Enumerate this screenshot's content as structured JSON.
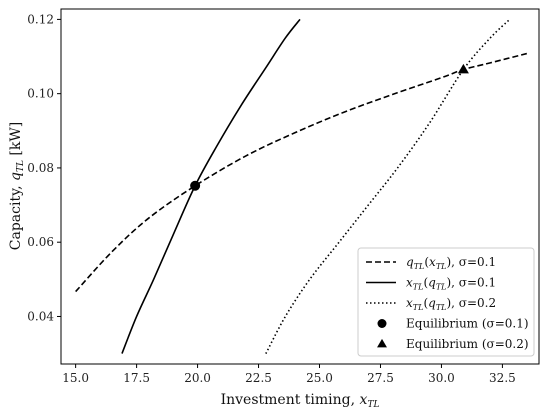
{
  "chart_data": {
    "type": "line",
    "xlabel": "Investment timing, x_TL",
    "ylabel": "Capacity, q_TL [kW]",
    "xlim": [
      14.4,
      34.0
    ],
    "ylim": [
      0.0272,
      0.1228
    ],
    "xticks": [
      15.0,
      17.5,
      20.0,
      22.5,
      25.0,
      27.5,
      30.0,
      32.5
    ],
    "xtick_labels": [
      "15.0",
      "17.5",
      "20.0",
      "22.5",
      "25.0",
      "27.5",
      "30.0",
      "32.5"
    ],
    "yticks": [
      0.04,
      0.06,
      0.08,
      0.1,
      0.12
    ],
    "ytick_labels": [
      "0.04",
      "0.06",
      "0.08",
      "0.10",
      "0.12"
    ],
    "grid": false,
    "legend_position": "lower-right",
    "series": [
      {
        "name": "q_TL(x_TL), σ=0.1",
        "style": "dashed",
        "color": "#000000",
        "x": [
          15.0,
          16.5,
          18.0,
          19.9,
          22.0,
          24.0,
          26.0,
          28.0,
          30.0,
          30.9,
          32.0,
          33.5
        ],
        "y": [
          0.0467,
          0.0575,
          0.0665,
          0.0752,
          0.0833,
          0.0895,
          0.095,
          0.0998,
          0.1043,
          0.1065,
          0.1083,
          0.1108
        ]
      },
      {
        "name": "x_TL(q_TL), σ=0.1",
        "style": "solid",
        "color": "#000000",
        "x": [
          16.9,
          17.5,
          18.2,
          19.0,
          19.9,
          20.8,
          21.8,
          22.8,
          23.6,
          24.2
        ],
        "y": [
          0.03,
          0.04,
          0.05,
          0.062,
          0.0752,
          0.086,
          0.097,
          0.107,
          0.115,
          0.12
        ]
      },
      {
        "name": "x_TL(q_TL), σ=0.2",
        "style": "dotted",
        "color": "#000000",
        "x": [
          22.8,
          23.6,
          24.6,
          25.8,
          27.0,
          28.2,
          29.5,
          30.9,
          32.0,
          32.8
        ],
        "y": [
          0.03,
          0.04,
          0.05,
          0.06,
          0.07,
          0.08,
          0.092,
          0.1065,
          0.115,
          0.12
        ]
      }
    ],
    "markers": [
      {
        "name": "Equilibrium (σ=0.1)",
        "shape": "circle",
        "x": 19.9,
        "y": 0.0752
      },
      {
        "name": "Equilibrium (σ=0.2)",
        "shape": "triangle",
        "x": 30.9,
        "y": 0.1065
      }
    ],
    "legend": [
      {
        "label": "q_TL(x_TL), σ=0.1",
        "kind": "dashed"
      },
      {
        "label": "x_TL(q_TL), σ=0.1",
        "kind": "solid"
      },
      {
        "label": "x_TL(q_TL), σ=0.2",
        "kind": "dotted"
      },
      {
        "label": "Equilibrium (σ=0.1)",
        "kind": "circle"
      },
      {
        "label": "Equilibrium (σ=0.2)",
        "kind": "triangle"
      }
    ]
  }
}
